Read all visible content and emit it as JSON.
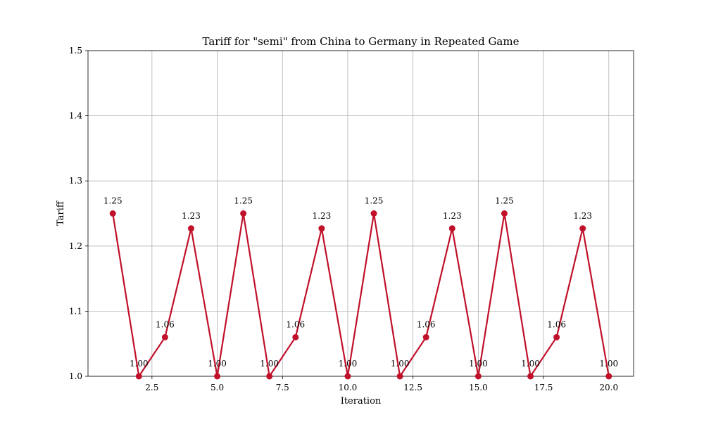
{
  "chart_data": {
    "type": "line",
    "title": "Tariff for \"semi\" from China to Germany in Repeated Game",
    "xlabel": "Iteration",
    "ylabel": "Tariff",
    "xlim": [
      0.05,
      20.95
    ],
    "ylim": [
      1.0,
      1.5
    ],
    "xticks": [
      2.5,
      5.0,
      7.5,
      10.0,
      12.5,
      15.0,
      17.5,
      20.0
    ],
    "xtick_labels": [
      "2.5",
      "5.0",
      "7.5",
      "10.0",
      "12.5",
      "15.0",
      "17.5",
      "20.0"
    ],
    "yticks": [
      1.0,
      1.1,
      1.2,
      1.3,
      1.4,
      1.5
    ],
    "ytick_labels": [
      "1.0",
      "1.1",
      "1.2",
      "1.3",
      "1.4",
      "1.5"
    ],
    "grid": true,
    "color": "#c0102a",
    "series": [
      {
        "x": [
          1,
          2,
          3,
          4,
          5,
          6,
          7,
          8,
          9,
          10,
          11,
          12,
          13,
          14,
          15,
          16,
          17,
          18,
          19,
          20
        ],
        "values": [
          1.25,
          1.0,
          1.06,
          1.227,
          1.0,
          1.25,
          1.0,
          1.06,
          1.227,
          1.0,
          1.25,
          1.0,
          1.06,
          1.227,
          1.0,
          1.25,
          1.0,
          1.06,
          1.227,
          1.0
        ],
        "labels": [
          "1.25",
          "1.00",
          "1.06",
          "1.23",
          "1.00",
          "1.25",
          "1.00",
          "1.06",
          "1.23",
          "1.00",
          "1.25",
          "1.00",
          "1.06",
          "1.23",
          "1.00",
          "1.25",
          "1.00",
          "1.06",
          "1.23",
          "1.00"
        ]
      }
    ]
  }
}
